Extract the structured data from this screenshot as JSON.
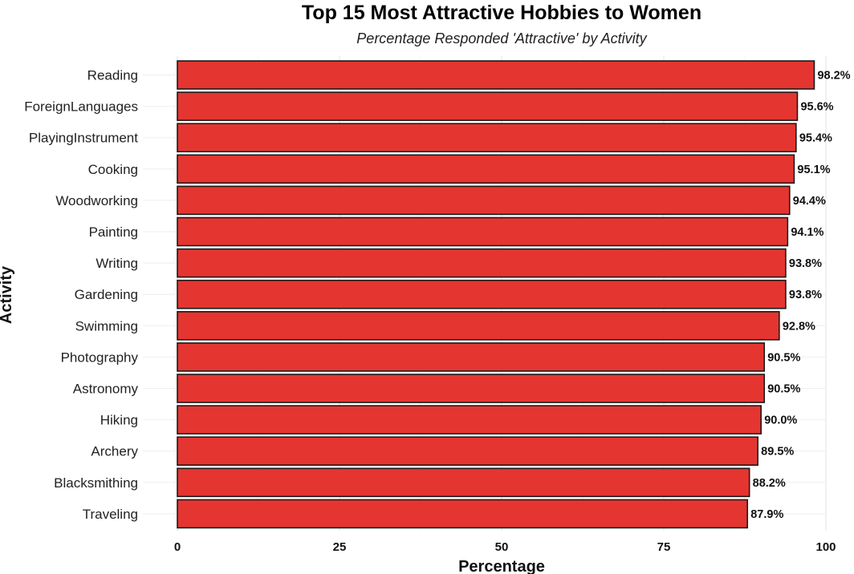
{
  "chart_data": {
    "type": "bar",
    "orientation": "horizontal",
    "title": "Top 15 Most Attractive Hobbies to Women",
    "subtitle": "Percentage Responded 'Attractive' by Activity",
    "xlabel": "Percentage",
    "ylabel": "Activity",
    "xlim": [
      0,
      100
    ],
    "xticks": [
      "0",
      "25",
      "50",
      "75",
      "100"
    ],
    "grid": true,
    "bar_color": "#e53530",
    "bar_edge_color": "#1a1a1a",
    "categories": [
      "Reading",
      "ForeignLanguages",
      "PlayingInstrument",
      "Cooking",
      "Woodworking",
      "Painting",
      "Writing",
      "Gardening",
      "Swimming",
      "Photography",
      "Astronomy",
      "Hiking",
      "Archery",
      "Blacksmithing",
      "Traveling"
    ],
    "values": [
      98.2,
      95.6,
      95.4,
      95.1,
      94.4,
      94.1,
      93.8,
      93.8,
      92.8,
      90.5,
      90.5,
      90.0,
      89.5,
      88.2,
      87.9
    ],
    "value_labels": [
      "98.2%",
      "95.6%",
      "95.4%",
      "95.1%",
      "94.4%",
      "94.1%",
      "93.8%",
      "93.8%",
      "92.8%",
      "90.5%",
      "90.5%",
      "90.0%",
      "89.5%",
      "88.2%",
      "87.9%"
    ]
  }
}
